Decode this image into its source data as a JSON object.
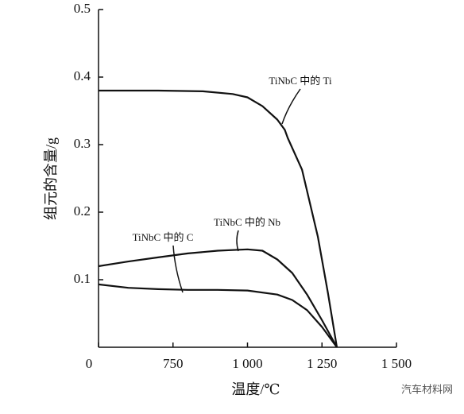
{
  "chart_data": {
    "type": "line",
    "xlabel": "温度/℃",
    "ylabel": "组元的含量/g",
    "xlim": [
      500,
      1500
    ],
    "xticks": [
      {
        "value": 500,
        "label": "0"
      },
      750,
      {
        "value": 1000,
        "label": "1 000"
      },
      {
        "value": 1250,
        "label": "1 250"
      },
      {
        "value": 1500,
        "label": "1 500"
      }
    ],
    "ylim": [
      0,
      0.5
    ],
    "yticks": [
      0.1,
      0.2,
      0.3,
      0.4,
      0.5
    ],
    "series": [
      {
        "name": "TiNbC 中的 Ti",
        "color": "#111111",
        "x": [
          500,
          700,
          850,
          950,
          1000,
          1050,
          1100,
          1125,
          1135,
          1183,
          1236,
          1270,
          1300
        ],
        "values": [
          0.38,
          0.38,
          0.379,
          0.375,
          0.37,
          0.357,
          0.337,
          0.322,
          0.31,
          0.263,
          0.164,
          0.08,
          0
        ]
      },
      {
        "name": "TiNbC 中的 Nb",
        "color": "#111111",
        "x": [
          500,
          600,
          700,
          800,
          900,
          1000,
          1050,
          1100,
          1150,
          1200,
          1250,
          1300
        ],
        "values": [
          0.12,
          0.127,
          0.133,
          0.139,
          0.143,
          0.145,
          0.143,
          0.13,
          0.11,
          0.078,
          0.04,
          0
        ]
      },
      {
        "name": "TiNbC 中的 C",
        "color": "#111111",
        "x": [
          500,
          600,
          700,
          800,
          900,
          1000,
          1100,
          1150,
          1200,
          1250,
          1300
        ],
        "values": [
          0.093,
          0.088,
          0.086,
          0.085,
          0.085,
          0.084,
          0.078,
          0.07,
          0.055,
          0.03,
          0
        ]
      }
    ],
    "watermark": "汽车材料网"
  }
}
